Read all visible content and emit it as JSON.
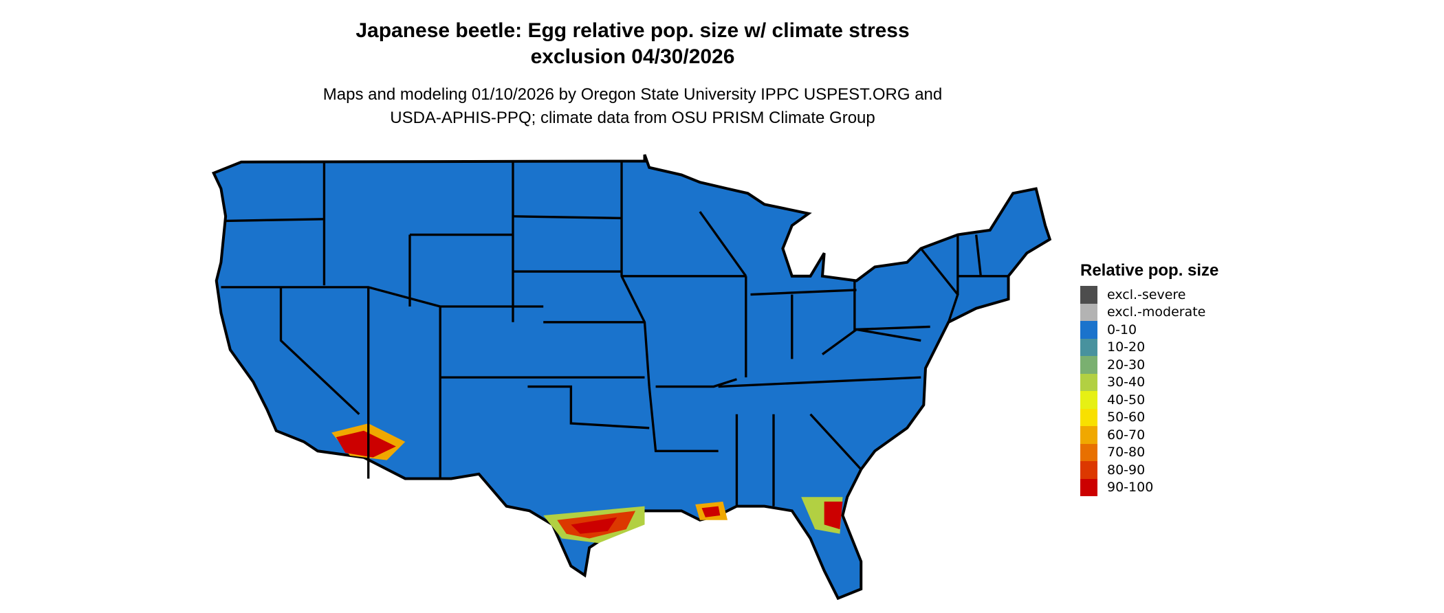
{
  "title_line1": "Japanese beetle: Egg relative pop. size w/ climate stress",
  "title_line2": "exclusion 04/30/2026",
  "subtitle_line1": "Maps and modeling 01/10/2026 by Oregon State University IPPC USPEST.ORG and",
  "subtitle_line2": "USDA-APHIS-PPQ; climate data from OSU PRISM Climate Group",
  "chart_data": {
    "type": "map",
    "region": "Contiguous United States",
    "legend_title": "Relative pop. size",
    "legend_position": "right",
    "legend": [
      {
        "label": "excl.-severe",
        "color": "#4d4d4d"
      },
      {
        "label": "excl.-moderate",
        "color": "#b3b3b3"
      },
      {
        "label": "0-10",
        "color": "#1a73cc"
      },
      {
        "label": "10-20",
        "color": "#48929e"
      },
      {
        "label": "20-30",
        "color": "#7ab070"
      },
      {
        "label": "30-40",
        "color": "#b2d042"
      },
      {
        "label": "40-50",
        "color": "#e6f014"
      },
      {
        "label": "50-60",
        "color": "#f8e000"
      },
      {
        "label": "60-70",
        "color": "#f0a800"
      },
      {
        "label": "70-80",
        "color": "#e87000"
      },
      {
        "label": "80-90",
        "color": "#dc3800"
      },
      {
        "label": "90-100",
        "color": "#cc0000"
      }
    ],
    "dominant_class": "0-10",
    "high_value_areas": [
      "southern Arizona / southeastern California",
      "Texas Gulf coast",
      "southern Louisiana",
      "northern Florida peninsula"
    ]
  }
}
